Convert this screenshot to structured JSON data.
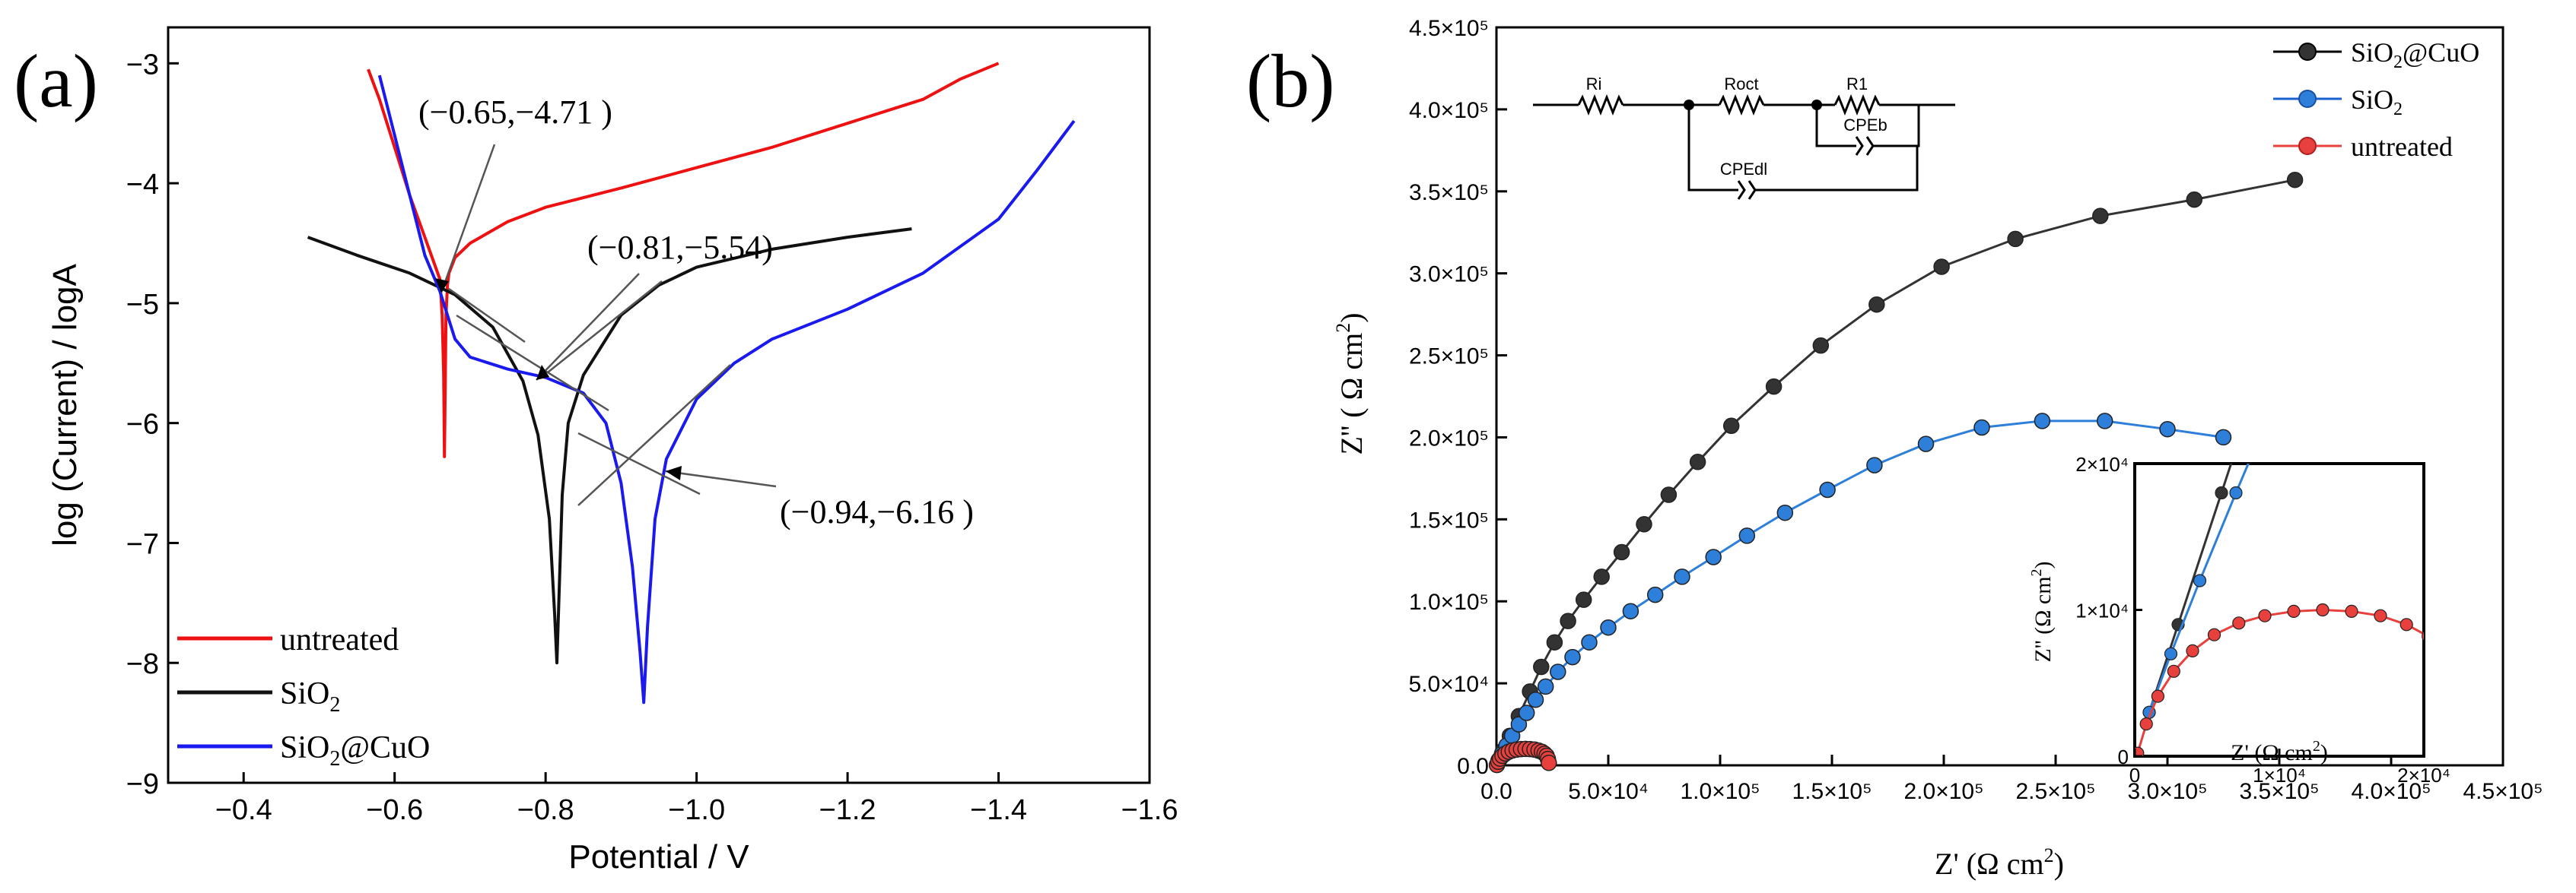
{
  "chart_data": [
    {
      "type": "line",
      "panel_label": "(a)",
      "title": "",
      "xlabel": "Potential / V",
      "ylabel": "log (Current)  / logA",
      "xlim": [
        -0.3,
        -1.6
      ],
      "ylim": [
        -9,
        -2.7
      ],
      "x_ticks": [
        -0.4,
        -0.6,
        -0.8,
        -1.0,
        -1.2,
        -1.4,
        -1.6
      ],
      "x_tick_labels": [
        "−0.4",
        "−0.6",
        "−0.8",
        "−1.0",
        "−1.2",
        "−1.4",
        "−1.6"
      ],
      "y_ticks": [
        -9,
        -8,
        -7,
        -6,
        -5,
        -4,
        -3
      ],
      "y_tick_labels": [
        "−9",
        "−8",
        "−7",
        "−6",
        "−5",
        "−4",
        "−3"
      ],
      "legend": [
        "untreated",
        "SiO2",
        "SiO2@CuO"
      ],
      "legend_position": "bottom-left",
      "series": [
        {
          "name": "untreated",
          "color": "#ee1111",
          "x": [
            -0.565,
            -0.58,
            -0.6,
            -0.62,
            -0.64,
            -0.66,
            -0.663,
            -0.665,
            -0.666,
            -0.667,
            -0.668,
            -0.67,
            -0.672,
            -0.68,
            -0.7,
            -0.75,
            -0.8,
            -0.9,
            -1.0,
            -1.1,
            -1.2,
            -1.3,
            -1.35,
            -1.4
          ],
          "y": [
            -3.05,
            -3.3,
            -3.7,
            -4.1,
            -4.45,
            -4.8,
            -5.1,
            -5.6,
            -6.28,
            -5.7,
            -5.1,
            -4.85,
            -4.75,
            -4.62,
            -4.5,
            -4.32,
            -4.2,
            -4.04,
            -3.87,
            -3.7,
            -3.5,
            -3.3,
            -3.13,
            -3.0
          ]
        },
        {
          "name": "SiO2",
          "color": "#111111",
          "x": [
            -0.485,
            -0.55,
            -0.62,
            -0.68,
            -0.73,
            -0.77,
            -0.79,
            -0.805,
            -0.812,
            -0.815,
            -0.818,
            -0.822,
            -0.83,
            -0.85,
            -0.9,
            -0.95,
            -1.0,
            -1.1,
            -1.2,
            -1.285
          ],
          "y": [
            -4.45,
            -4.6,
            -4.75,
            -4.93,
            -5.2,
            -5.65,
            -6.1,
            -6.8,
            -7.6,
            -8.0,
            -7.4,
            -6.6,
            -6.0,
            -5.6,
            -5.1,
            -4.85,
            -4.7,
            -4.55,
            -4.45,
            -4.38
          ]
        },
        {
          "name": "SiO2@CuO",
          "color": "#1a1aee",
          "x": [
            -0.58,
            -0.6,
            -0.62,
            -0.64,
            -0.66,
            -0.68,
            -0.7,
            -0.75,
            -0.8,
            -0.85,
            -0.88,
            -0.9,
            -0.915,
            -0.925,
            -0.93,
            -0.935,
            -0.945,
            -0.96,
            -1.0,
            -1.05,
            -1.1,
            -1.2,
            -1.3,
            -1.4,
            -1.45,
            -1.5
          ],
          "y": [
            -3.1,
            -3.6,
            -4.1,
            -4.6,
            -4.9,
            -5.3,
            -5.45,
            -5.55,
            -5.62,
            -5.75,
            -6.0,
            -6.5,
            -7.2,
            -7.9,
            -8.33,
            -7.7,
            -6.8,
            -6.3,
            -5.8,
            -5.5,
            -5.3,
            -5.05,
            -4.75,
            -4.3,
            -3.9,
            -3.48
          ]
        }
      ],
      "annotations": [
        {
          "text": "(−0.65,−4.71 )",
          "x": -0.65,
          "y": -4.71
        },
        {
          "text": "(−0.81,−5.54)",
          "x": -0.81,
          "y": -5.54
        },
        {
          "text": "(−0.94,−6.16 )",
          "x": -0.94,
          "y": -6.16
        }
      ]
    },
    {
      "type": "scatter",
      "panel_label": "(b)",
      "title": "",
      "xlabel": "Z' (Ω cm2)",
      "ylabel": "Z'' ( Ω cm2)",
      "xlim": [
        0,
        450000
      ],
      "ylim": [
        0,
        450000
      ],
      "x_ticks": [
        0,
        50000,
        100000,
        150000,
        200000,
        250000,
        300000,
        350000,
        400000,
        450000
      ],
      "x_tick_labels": [
        "0.0",
        "5.0×10⁴",
        "1.0×10⁵",
        "1.5×10⁵",
        "2.0×10⁵",
        "2.5×10⁵",
        "3.0×10⁵",
        "3.5×10⁵",
        "4.0×10⁵",
        "4.5×10⁵"
      ],
      "y_ticks": [
        0,
        50000,
        100000,
        150000,
        200000,
        250000,
        300000,
        350000,
        400000,
        450000
      ],
      "y_tick_labels": [
        "0.0",
        "5.0×10⁴",
        "1.0×10⁵",
        "1.5×10⁵",
        "2.0×10⁵",
        "2.5×10⁵",
        "3.0×10⁵",
        "3.5×10⁵",
        "4.0×10⁵",
        "4.5×10⁵"
      ],
      "legend": [
        "SiO2@CuO",
        "SiO2",
        "untreated"
      ],
      "legend_position": "top-right",
      "series": [
        {
          "name": "SiO2@CuO",
          "color": "#333333",
          "x": [
            1000,
            3000,
            6000,
            10000,
            15000,
            20000,
            26000,
            32000,
            39000,
            47000,
            56000,
            66000,
            77000,
            90000,
            105000,
            124000,
            145000,
            170000,
            199000,
            232000,
            270000,
            312000,
            357000
          ],
          "y": [
            3000,
            9000,
            18000,
            30000,
            45000,
            60000,
            75000,
            88000,
            101000,
            115000,
            130000,
            147000,
            165000,
            185000,
            207000,
            231000,
            256000,
            281000,
            304000,
            321000,
            335000,
            345000,
            357000
          ]
        },
        {
          "name": "SiO2",
          "color": "#2e7fd9",
          "x": [
            1000,
            2500,
            4500,
            7000,
            10000,
            13500,
            17500,
            22000,
            27500,
            34000,
            41500,
            50000,
            60000,
            71000,
            83000,
            97000,
            112000,
            129000,
            148000,
            169000,
            192000,
            217000,
            244000,
            272000,
            300000,
            325000
          ],
          "y": [
            3000,
            7000,
            12000,
            18000,
            25000,
            32000,
            40000,
            48000,
            57000,
            66000,
            75000,
            84000,
            94000,
            104000,
            115000,
            127000,
            140000,
            154000,
            168000,
            183000,
            196000,
            206000,
            210000,
            210000,
            205000,
            200000
          ]
        },
        {
          "name": "untreated",
          "color": "#e8403c",
          "x": [
            200,
            800,
            1600,
            2700,
            4000,
            5500,
            7200,
            9000,
            11000,
            13000,
            15000,
            17000,
            18800,
            20300,
            21500,
            22400,
            23000,
            23400
          ],
          "y": [
            200,
            2200,
            4100,
            5800,
            7200,
            8300,
            9100,
            9600,
            9900,
            10000,
            9900,
            9600,
            9000,
            8200,
            7100,
            5800,
            3900,
            1500
          ]
        }
      ],
      "inset": {
        "xlim": [
          0,
          20000
        ],
        "ylim": [
          0,
          20000
        ],
        "xlabel": "Z' (Ω cm2)",
        "ylabel": "Z'' (Ω cm2)",
        "x_tick_labels": [
          "0",
          "1×10⁴",
          "2×10⁴"
        ],
        "y_tick_labels": [
          "0",
          "1×10⁴",
          "2×10⁴"
        ]
      },
      "circuit": {
        "labels": [
          "Ri",
          "Roct",
          "R1",
          "CPEb",
          "CPEdl"
        ]
      }
    }
  ]
}
